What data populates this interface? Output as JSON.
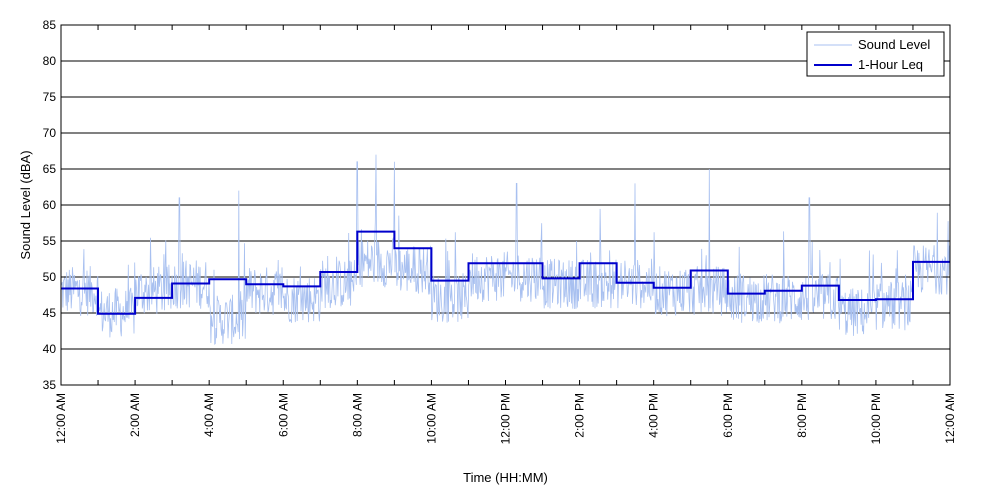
{
  "chart_data": {
    "type": "line",
    "title": "",
    "xlabel": "Time (HH:MM)",
    "ylabel": "Sound Level (dBA)",
    "ylim": [
      35,
      85
    ],
    "y_ticks": [
      35,
      40,
      45,
      50,
      55,
      60,
      65,
      70,
      75,
      80,
      85
    ],
    "xlim_hours": [
      0,
      24
    ],
    "x_tick_hours": [
      0,
      2,
      4,
      6,
      8,
      10,
      12,
      14,
      16,
      18,
      20,
      22,
      24
    ],
    "x_tick_labels": [
      "12:00 AM",
      "2:00 AM",
      "4:00 AM",
      "6:00 AM",
      "8:00 AM",
      "10:00 AM",
      "12:00 PM",
      "2:00 PM",
      "4:00 PM",
      "6:00 PM",
      "8:00 PM",
      "10:00 PM",
      "12:00 AM"
    ],
    "grid": "horizontal",
    "legend_position": "top-right",
    "series": [
      {
        "name": "Sound Level",
        "color": "#a8c0f0",
        "style": "thin line",
        "hourly_mean": [
          47,
          44,
          47,
          48,
          43,
          47,
          46,
          48,
          51,
          50,
          46,
          49,
          49,
          48,
          48,
          48,
          47,
          47,
          46,
          46,
          46,
          44,
          45,
          50
        ],
        "peaks": [
          {
            "hour": 3.2,
            "value": 61
          },
          {
            "hour": 4.8,
            "value": 62
          },
          {
            "hour": 8.0,
            "value": 66
          },
          {
            "hour": 8.5,
            "value": 67
          },
          {
            "hour": 9.0,
            "value": 66
          },
          {
            "hour": 12.3,
            "value": 63
          },
          {
            "hour": 15.5,
            "value": 63
          },
          {
            "hour": 17.5,
            "value": 65
          },
          {
            "hour": 20.2,
            "value": 61
          }
        ]
      },
      {
        "name": "1-Hour Leq",
        "color": "#0000cc",
        "style": "step",
        "hours": [
          0,
          1,
          2,
          3,
          4,
          5,
          6,
          7,
          8,
          9,
          10,
          11,
          12,
          13,
          14,
          15,
          16,
          17,
          18,
          19,
          20,
          21,
          22,
          23
        ],
        "values": [
          48.4,
          44.9,
          47.1,
          49.1,
          49.7,
          49.0,
          48.7,
          50.7,
          56.3,
          54.0,
          49.5,
          51.9,
          51.9,
          49.8,
          51.9,
          49.2,
          48.5,
          50.9,
          47.7,
          48.1,
          48.8,
          46.8,
          46.9,
          52.1
        ]
      }
    ]
  }
}
